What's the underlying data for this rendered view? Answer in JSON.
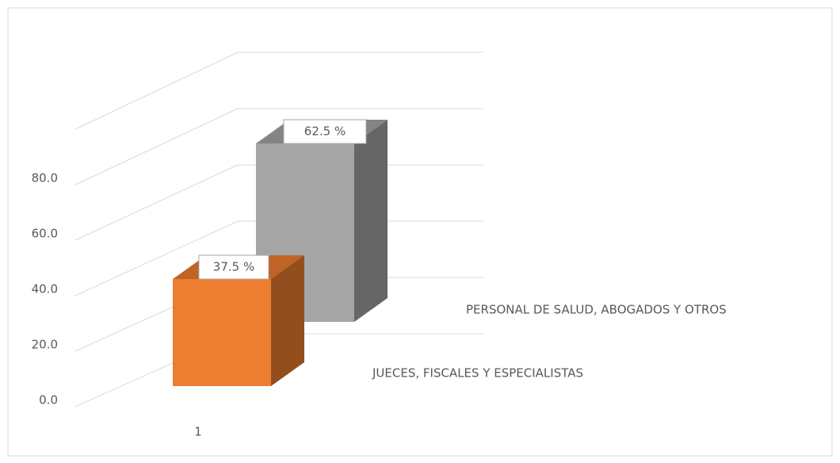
{
  "chart_data": {
    "type": "bar3d",
    "categories": [
      "1"
    ],
    "series": [
      {
        "name": "JUECES, FISCALES Y ESPECIALISTAS",
        "color": "#ED7D31",
        "values": [
          37.5
        ],
        "value_labels": [
          "37.5 %"
        ]
      },
      {
        "name": "PERSONAL DE SALUD, ABOGADOS Y OTROS",
        "color": "#A5A5A5",
        "values": [
          62.5
        ],
        "value_labels": [
          "62.5 %"
        ]
      }
    ],
    "ylim": [
      0,
      100
    ],
    "yticks": [
      {
        "value": 0,
        "label": "0.0"
      },
      {
        "value": 20,
        "label": "20.0"
      },
      {
        "value": 40,
        "label": "40.0"
      },
      {
        "value": 60,
        "label": "60.0"
      },
      {
        "value": 80,
        "label": "80.0"
      }
    ],
    "grid": true
  }
}
